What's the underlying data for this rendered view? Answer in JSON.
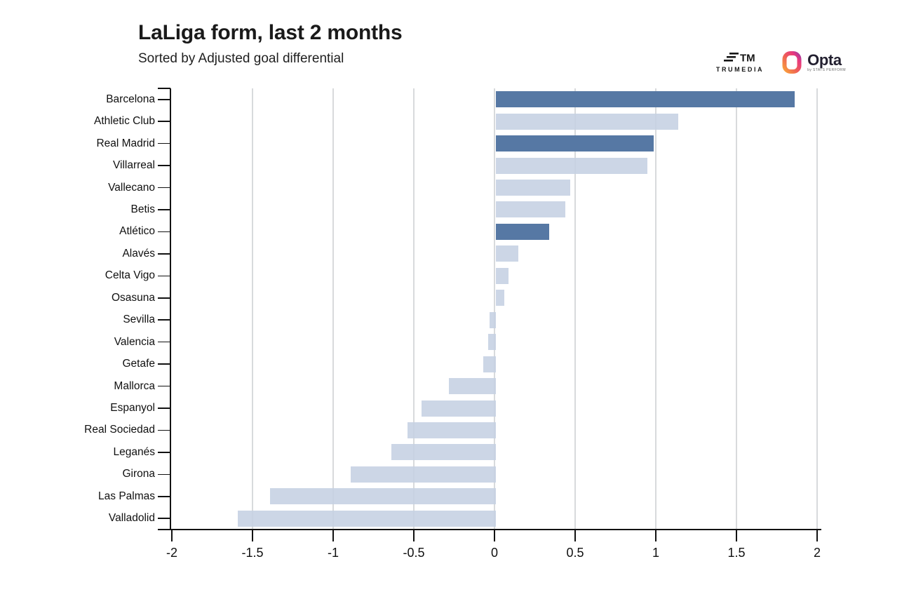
{
  "header": {
    "title": "LaLiga form, last 2 months",
    "subtitle": "Sorted by Adjusted goal differential"
  },
  "logos": {
    "trumedia_icon_label": "TM",
    "trumedia_label": "TRUMEDIA",
    "opta_label": "Opta",
    "opta_sublabel": "by STATS PERFORM"
  },
  "chart_data": {
    "type": "bar",
    "orientation": "horizontal",
    "title": "LaLiga form, last 2 months",
    "subtitle": "Sorted by Adjusted goal differential",
    "xlabel": "",
    "ylabel": "",
    "xlim": [
      -2,
      2
    ],
    "x_ticks": [
      -2,
      -1.5,
      -1,
      -0.5,
      0,
      0.5,
      1,
      1.5,
      2
    ],
    "x_tick_labels": [
      "-2",
      "-1.5",
      "-1",
      "-0.5",
      "0",
      "0.5",
      "1",
      "1.5",
      "2"
    ],
    "gridline_values": [
      -1.5,
      -1,
      -0.5,
      0,
      0.5,
      1,
      1.5,
      2
    ],
    "grid": true,
    "legend": false,
    "colors": {
      "highlight": "#5678a4",
      "default": "#ccd6e5"
    },
    "categories": [
      "Barcelona",
      "Athletic Club",
      "Real Madrid",
      "Villarreal",
      "Vallecano",
      "Betis",
      "Atlético",
      "Alavés",
      "Celta Vigo",
      "Osasuna",
      "Sevilla",
      "Valencia",
      "Getafe",
      "Mallorca",
      "Espanyol",
      "Real Sociedad",
      "Leganés",
      "Girona",
      "Las Palmas",
      "Valladolid"
    ],
    "values": [
      1.85,
      1.13,
      0.98,
      0.94,
      0.46,
      0.43,
      0.33,
      0.14,
      0.08,
      0.05,
      -0.04,
      -0.05,
      -0.08,
      -0.29,
      -0.46,
      -0.55,
      -0.65,
      -0.9,
      -1.4,
      -1.6
    ],
    "highlighted": [
      true,
      false,
      true,
      false,
      false,
      false,
      true,
      false,
      false,
      false,
      false,
      false,
      false,
      false,
      false,
      false,
      false,
      false,
      false,
      false
    ]
  }
}
